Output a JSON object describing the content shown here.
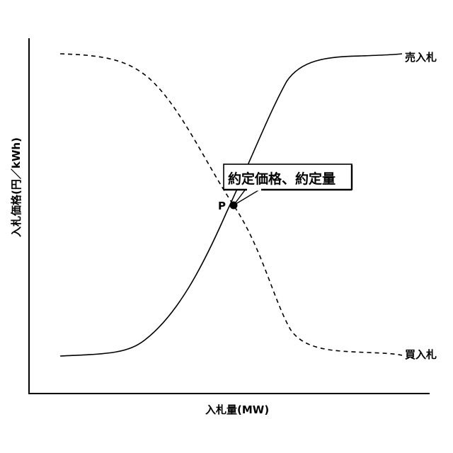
{
  "axes": {
    "x_label": "入札量(MW)",
    "y_label": "入札価格(円／kWh)"
  },
  "curves": {
    "sell_label": "売入札",
    "buy_label": "買入札"
  },
  "point": {
    "label": "P",
    "callout": "約定価格、約定量"
  }
}
